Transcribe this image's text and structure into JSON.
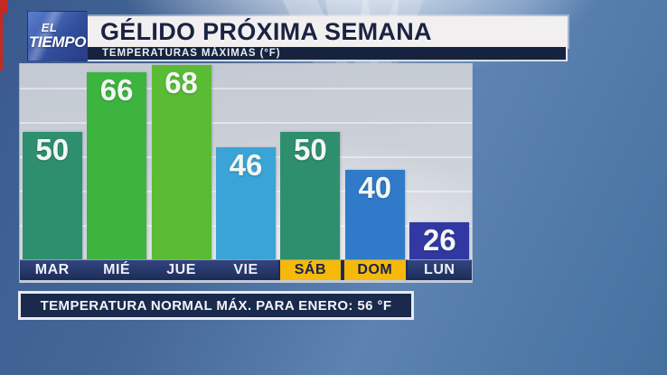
{
  "logo": {
    "line1": "EL",
    "line2": "TIEMPO"
  },
  "header": {
    "title": "GÉLIDO PRÓXIMA SEMANA",
    "subtitle": "TEMPERATURAS MÁXIMAS (°F)"
  },
  "chart_data": {
    "type": "bar",
    "title": "GÉLIDO PRÓXIMA SEMANA",
    "subtitle": "TEMPERATURAS MÁXIMAS (°F)",
    "unit": "°F",
    "categories": [
      "MAR",
      "MIÉ",
      "JUE",
      "VIE",
      "SÁB",
      "DOM",
      "LUN"
    ],
    "values": [
      50,
      66,
      68,
      46,
      50,
      40,
      26
    ],
    "bar_colors": [
      "#2e8f6e",
      "#3db43e",
      "#5abc35",
      "#3aa4d6",
      "#2e8f6e",
      "#2f7ac9",
      "#3138a2"
    ],
    "weekend_highlighted": [
      false,
      false,
      false,
      false,
      true,
      true,
      false
    ],
    "xlabel": "",
    "ylabel": "",
    "ylim": [
      16,
      68
    ],
    "grid": true,
    "legend": false,
    "value_labels": "inside-top"
  },
  "footer": {
    "note": "TEMPERATURA NORMAL MÁX. PARA ENERO: 56 °F"
  },
  "colors": {
    "accent-yellow": "#f6b90a",
    "banner-navy": "#1a2a4c",
    "red-accent": "#c22a22",
    "title-text": "#1b2342",
    "day-strip-navy": "#24356b"
  }
}
